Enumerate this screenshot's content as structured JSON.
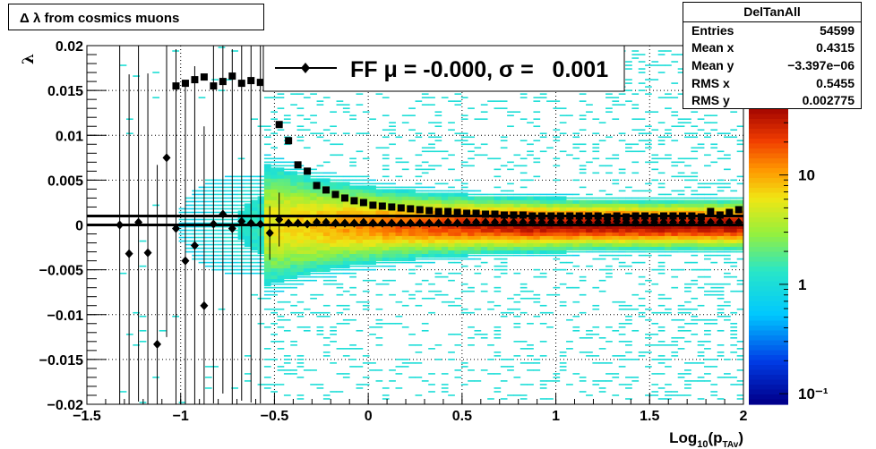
{
  "title": "Δ λ from cosmics muons",
  "stats": {
    "name": "DelTanAll",
    "rows": [
      {
        "label": "Entries",
        "value": "54599"
      },
      {
        "label": "Mean x",
        "value": "0.4315"
      },
      {
        "label": "Mean y",
        "value": "−3.397e−06"
      },
      {
        "label": "RMS x",
        "value": "0.5455"
      },
      {
        "label": "RMS y",
        "value": "0.002775"
      }
    ]
  },
  "legend": {
    "label": "FF μ = -0.000, σ =   0.001"
  },
  "chart_data": {
    "type": "heatmap",
    "xlabel": "Log",
    "xlabel_sub": "10",
    "xlabel_tail": "(p",
    "xlabel_sub2": "TAv",
    "xlabel_close": ")",
    "ylabel": "λ",
    "xlim": [
      -1.5,
      2
    ],
    "ylim": [
      -0.02,
      0.02
    ],
    "grid": true,
    "x_ticks": [
      "−1.5",
      "−1",
      "−0.5",
      "0",
      "0.5",
      "1",
      "1.5",
      "2"
    ],
    "y_ticks": [
      "−0.02",
      "−0.015",
      "−0.01",
      "−0.005",
      "0",
      "0.005",
      "0.01",
      "0.015",
      "0.02"
    ],
    "colorbar": {
      "scale": "log",
      "range": [
        0.08,
        40
      ],
      "ticks": [
        "10⁻¹",
        "1",
        "10"
      ]
    },
    "reference_lines": [
      0.001,
      0
    ],
    "profile_mean_series": {
      "name": "mean",
      "x": [
        -1.325,
        -1.275,
        -1.225,
        -1.175,
        -1.125,
        -1.075,
        -1.025,
        -0.975,
        -0.925,
        -0.875,
        -0.825,
        -0.775,
        -0.725,
        -0.675,
        -0.625,
        -0.575,
        -0.525,
        -0.475,
        -0.425,
        -0.375,
        -0.325,
        -0.275,
        -0.225,
        -0.175,
        -0.125,
        -0.075,
        -0.025,
        0.025,
        0.075,
        0.125,
        0.175,
        0.225,
        0.275,
        0.325,
        0.375,
        0.425,
        0.475,
        0.525,
        0.575,
        0.625,
        0.675,
        0.725,
        0.775,
        0.825,
        0.875,
        0.925,
        0.975,
        1.025,
        1.075,
        1.125,
        1.175,
        1.225,
        1.275,
        1.325,
        1.375,
        1.425,
        1.475,
        1.525,
        1.575,
        1.625,
        1.675,
        1.725,
        1.775,
        1.825,
        1.875,
        1.925,
        1.975
      ],
      "y": [
        0,
        -0.0032,
        0.0003,
        -0.0031,
        -0.0133,
        0.0075,
        -0.0004,
        -0.004,
        -0.0023,
        -0.009,
        0.0001,
        0.0012,
        -0.0004,
        0.0004,
        0.0002,
        0.0001,
        -0.0009,
        0.0006,
        0.0002,
        0.0002,
        0.0001,
        0.0003,
        0.0003,
        0.0002,
        0.0002,
        0.0002,
        0.0003,
        0.0002,
        0.0002,
        0.0002,
        0.0002,
        0.0002,
        0.0002,
        0.0002,
        0.0002,
        0.0003,
        0.0002,
        0.0003,
        0.0003,
        0.0003,
        0.0003,
        0.0003,
        0.0003,
        0.0003,
        0.0003,
        0.0003,
        0.0003,
        0.0003,
        0.0003,
        0.0003,
        0.0003,
        0.0003,
        0.0003,
        0.0004,
        0.0003,
        0.0003,
        0.0003,
        0.0003,
        0.0003,
        0.0003,
        0.0003,
        0.0003,
        0.0003,
        0.0003,
        0.0003,
        0.0003,
        0.0003
      ]
    },
    "profile_rms_series": {
      "name": "rms",
      "x": [
        -1.025,
        -0.975,
        -0.925,
        -0.875,
        -0.825,
        -0.775,
        -0.725,
        -0.675,
        -0.625,
        -0.575,
        -0.525,
        -0.475,
        -0.425,
        -0.375,
        -0.325,
        -0.275,
        -0.225,
        -0.175,
        -0.125,
        -0.075,
        -0.025,
        0.025,
        0.075,
        0.125,
        0.175,
        0.225,
        0.275,
        0.325,
        0.375,
        0.425,
        0.475,
        0.525,
        0.575,
        0.625,
        0.675,
        0.725,
        0.775,
        0.825,
        0.875,
        0.925,
        0.975,
        1.025,
        1.075,
        1.125,
        1.175,
        1.225,
        1.275,
        1.325,
        1.375,
        1.425,
        1.475,
        1.525,
        1.575,
        1.625,
        1.675,
        1.725,
        1.775,
        1.825,
        1.875,
        1.925,
        1.975
      ],
      "y": [
        0.0155,
        0.0158,
        0.0162,
        0.0165,
        0.0155,
        0.016,
        0.0166,
        0.0158,
        0.0161,
        0.0159,
        0.0161,
        0.0112,
        0.0094,
        0.0067,
        0.006,
        0.0044,
        0.0039,
        0.0034,
        0.003,
        0.0027,
        0.0025,
        0.0022,
        0.0021,
        0.002,
        0.0019,
        0.0018,
        0.0017,
        0.0016,
        0.0015,
        0.0015,
        0.0014,
        0.0013,
        0.0013,
        0.0012,
        0.0012,
        0.0011,
        0.0011,
        0.0011,
        0.001,
        0.001,
        0.001,
        0.001,
        0.001,
        0.001,
        0.001,
        0.001,
        0.0009,
        0.001,
        0.0009,
        0.001,
        0.001,
        0.0009,
        0.001,
        0.001,
        0.001,
        0.001,
        0.0009,
        0.0015,
        0.0011,
        0.0014,
        0.0017
      ]
    }
  }
}
